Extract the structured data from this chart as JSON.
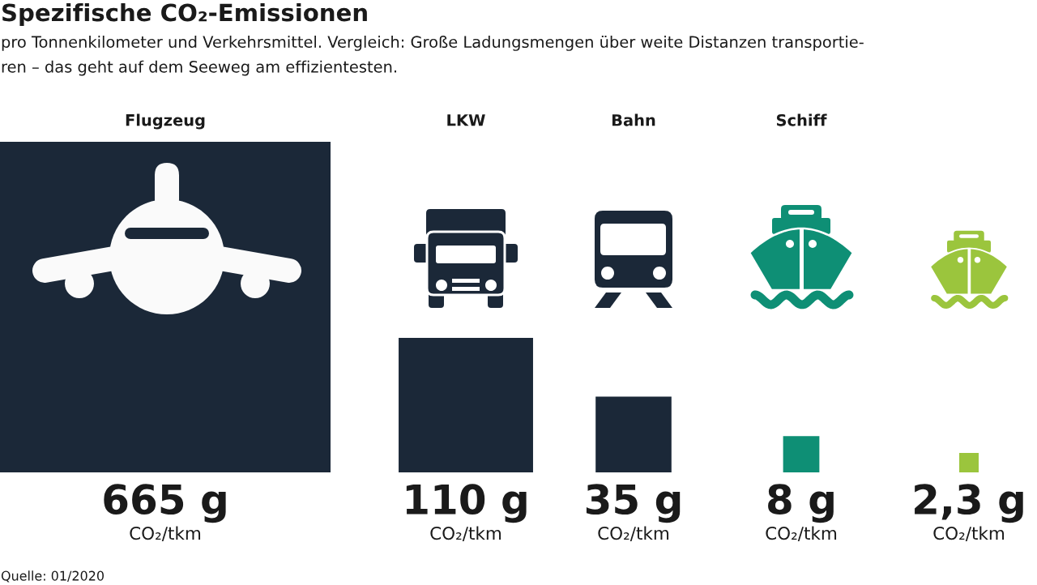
{
  "chart_data": {
    "type": "other",
    "title": "Spezifische CO₂-Emissionen",
    "subtitle": "pro Tonnenkilometer und Verkehrsmittel. Vergleich: Große Ladungsmengen über weite Distanzen transportie-\nren – das geht auf dem Seeweg am effizientesten.",
    "categories": [
      "Flugzeug",
      "LKW",
      "Bahn",
      "Schiff",
      null
    ],
    "values": [
      665,
      110,
      35,
      8,
      2.3
    ],
    "colors": [
      "#1b2838",
      "#1b2838",
      "#1b2838",
      "#0e8f75",
      "#9bc53d"
    ],
    "value_labels": [
      "665 g\nCO₂/tkm",
      "110 g\nCO₂/tkm",
      "35 g\nCO₂/tkm",
      "8 g\nCO₂/tkm",
      "2,3 g\nCO₂/tkm"
    ],
    "annotations": [
      "Quelle: 01/2020"
    ]
  }
}
